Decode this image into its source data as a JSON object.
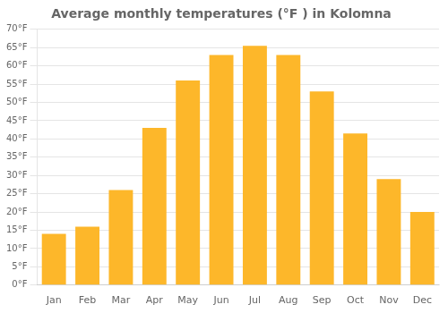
{
  "chart_data": {
    "type": "bar",
    "title": "Average monthly temperatures (°F ) in Kolomna",
    "categories": [
      "Jan",
      "Feb",
      "Mar",
      "Apr",
      "May",
      "Jun",
      "Jul",
      "Aug",
      "Sep",
      "Oct",
      "Nov",
      "Dec"
    ],
    "values": [
      14,
      16,
      26,
      43,
      56,
      63,
      65.5,
      63,
      53,
      41.5,
      29,
      20
    ],
    "color": "#FDB72A",
    "ylim": [
      0,
      70
    ],
    "yticks": [
      {
        "value": 0,
        "label": "0°F"
      },
      {
        "value": 5,
        "label": "5°F"
      },
      {
        "value": 10,
        "label": "10°F"
      },
      {
        "value": 15,
        "label": "15°F"
      },
      {
        "value": 20,
        "label": "20°F"
      },
      {
        "value": 25,
        "label": "25°F"
      },
      {
        "value": 30,
        "label": "30°F"
      },
      {
        "value": 35,
        "label": "35°F"
      },
      {
        "value": 40,
        "label": "40°F"
      },
      {
        "value": 45,
        "label": "45°F"
      },
      {
        "value": 50,
        "label": "50°F"
      },
      {
        "value": 55,
        "label": "55°F"
      },
      {
        "value": 60,
        "label": "60°F"
      },
      {
        "value": 65,
        "label": "65°F"
      },
      {
        "value": 70,
        "label": "70°F"
      }
    ],
    "grid": true
  }
}
